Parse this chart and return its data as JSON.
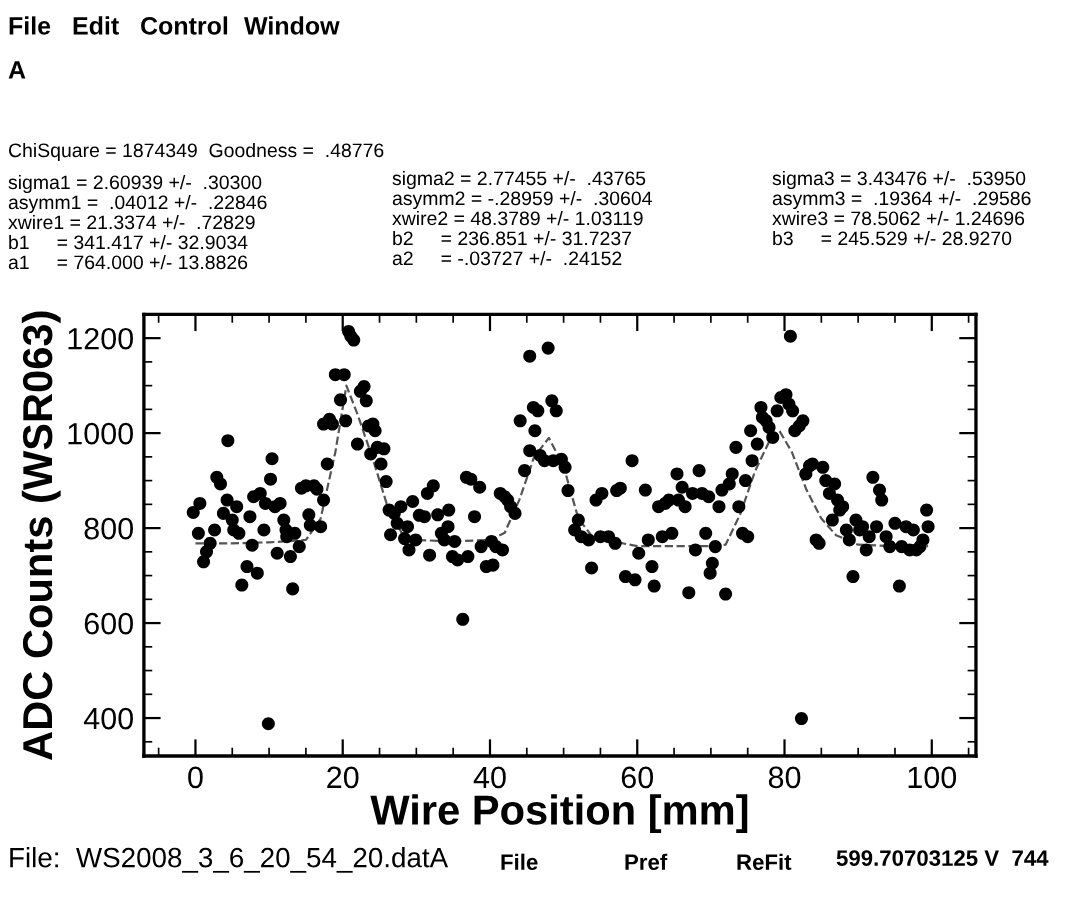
{
  "chart_data": {
    "type": "scatter",
    "xlabel": "Wire Position [mm]",
    "ylabel": "ADC Counts (WSR063)",
    "xlim": [
      -7,
      106
    ],
    "ylim": [
      320,
      1250
    ],
    "xticks": [
      0,
      20,
      40,
      60,
      80,
      100
    ],
    "yticks": [
      400,
      600,
      800,
      1000,
      1200
    ],
    "grid": false,
    "legend": false,
    "annotations": [
      "File",
      "Edit",
      "Control",
      "Window",
      "A",
      "ChiSquare = 1874349  Goodness =  .48776",
      "sigma1 = 2.60939 +/-  .30300",
      "asymm1 =  .04012 +/-  .22846",
      "xwire1 = 21.3374 +/-  .72829",
      "b1     = 341.417 +/- 32.9034",
      "a1     = 764.000 +/- 13.8826",
      "sigma2 = 2.77455 +/-  .43765",
      "asymm2 = -.28959 +/-  .30604",
      "xwire2 = 48.3789 +/- 1.03119",
      "b2     = 236.851 +/- 31.7237",
      "a2     = -.03727 +/-  .24152",
      "sigma3 = 3.43476 +/-  .53950",
      "asymm3 =  .19364 +/-  .29586",
      "xwire3 = 78.5062 +/- 1.24696",
      "b3     = 245.529 +/- 28.9270",
      "File:  WS2008_3_6_20_54_20.datA",
      "File",
      "Pref",
      "ReFit",
      "599.70703125 V  744"
    ],
    "series": [
      {
        "color": "#000000",
        "marker": "circle",
        "x": [
          -0.3,
          0.6,
          0.4,
          1.1,
          1.5,
          2.0,
          2.6,
          2.9,
          3.4,
          3.8,
          4.3,
          4.4,
          5.0,
          5.2,
          5.6,
          5.9,
          6.3,
          7.0,
          7.4,
          7.7,
          7.9,
          8.4,
          8.8,
          9.3,
          9.5,
          9.9,
          10.2,
          10.4,
          10.8,
          11.1,
          11.5,
          12.0,
          12.3,
          12.4,
          12.9,
          13.2,
          13.5,
          14.1,
          14.4,
          15.0,
          15.4,
          15.6,
          16.1,
          16.5,
          17.0,
          17.4,
          17.9,
          17.4,
          18.2,
          18.6,
          19.0,
          19.7,
          20.2,
          20.4,
          20.8,
          21.1,
          21.5,
          22.0,
          22.4,
          22.9,
          23.2,
          23.5,
          23.8,
          24.1,
          24.4,
          24.7,
          25.2,
          25.6,
          25.9,
          26.3,
          26.5,
          27.0,
          27.4,
          27.9,
          28.4,
          28.8,
          29.0,
          29.5,
          29.9,
          30.4,
          31.1,
          31.5,
          31.8,
          32.3,
          32.9,
          33.4,
          33.8,
          34.3,
          34.4,
          34.9,
          35.2,
          35.6,
          36.3,
          36.8,
          37.0,
          37.4,
          37.9,
          38.6,
          38.8,
          39.5,
          40.2,
          40.4,
          40.8,
          41.4,
          41.7,
          42.0,
          42.4,
          42.8,
          43.4,
          44.1,
          44.7,
          45.4,
          45.4,
          45.9,
          46.1,
          46.5,
          46.8,
          47.4,
          47.9,
          48.4,
          48.6,
          49.0,
          49.7,
          50.2,
          50.6,
          51.5,
          52.0,
          52.4,
          53.4,
          53.8,
          54.4,
          55.0,
          55.2,
          56.1,
          57.0,
          57.2,
          57.7,
          58.4,
          59.3,
          59.7,
          60.2,
          61.1,
          61.5,
          62.0,
          62.3,
          62.9,
          63.4,
          63.8,
          64.3,
          64.7,
          65.4,
          65.6,
          66.1,
          66.5,
          67.0,
          67.5,
          67.9,
          68.4,
          68.8,
          69.3,
          69.7,
          69.9,
          70.2,
          70.6,
          71.1,
          71.5,
          72.0,
          72.5,
          72.9,
          73.4,
          73.8,
          74.3,
          74.7,
          75.0,
          75.4,
          75.6,
          76.3,
          76.8,
          77.0,
          77.5,
          77.9,
          78.4,
          79.0,
          79.5,
          80.2,
          80.6,
          80.8,
          81.1,
          81.4,
          82.0,
          82.3,
          82.5,
          82.9,
          83.4,
          83.8,
          84.3,
          84.7,
          85.2,
          85.6,
          86.1,
          86.5,
          86.8,
          87.2,
          87.5,
          87.9,
          88.4,
          88.8,
          89.3,
          89.7,
          90.2,
          90.6,
          91.1,
          91.5,
          92.0,
          92.5,
          92.9,
          93.2,
          93.8,
          94.3,
          95.0,
          95.6,
          95.9,
          96.5,
          97.0,
          97.5,
          97.9,
          98.4,
          98.8,
          99.3,
          99.5
        ],
        "values": [
          833,
          852,
          789,
          729,
          750,
          768,
          796,
          907,
          893,
          831,
          859,
          984,
          817,
          796,
          845,
          789,
          680,
          719,
          824,
          764,
          866,
          705,
          873,
          796,
          852,
          388,
          903,
          946,
          845,
          747,
          852,
          817,
          796,
          782,
          740,
          672,
          789,
          761,
          884,
          889,
          828,
          806,
          889,
          882,
          803,
          859,
          935,
          1019,
          1029,
          1019,
          1123,
          1070,
          1123,
          1026,
          1214,
          1204,
          1196,
          977,
          1088,
          1098,
          1068,
          1015,
          956,
          1019,
          1005,
          970,
          935,
          967,
          898,
          838,
          786,
          831,
          810,
          845,
          778,
          803,
          754,
          856,
          775,
          827,
          824,
          873,
          743,
          889,
          828,
          789,
          775,
          803,
          838,
          740,
          772,
          733,
          608,
          907,
          740,
          903,
          824,
          886,
          761,
          719,
          772,
          722,
          761,
          873,
          754,
          866,
          859,
          845,
          831,
          1026,
          921,
          963,
          1162,
          1054,
          1005,
          1047,
          953,
          942,
          1179,
          1068,
          942,
          1047,
          945,
          928,
          879,
          796,
          817,
          782,
          775,
          716,
          859,
          782,
          873,
          782,
          768,
          879,
          884,
          698,
          942,
          691,
          747,
          880,
          775,
          719,
          678,
          845,
          782,
          852,
          859,
          789,
          914,
          859,
          886,
          845,
          664,
          873,
          754,
          921,
          873,
          789,
          866,
          705,
          726,
          761,
          845,
          880,
          661,
          893,
          914,
          970,
          845,
          789,
          900,
          782,
          1005,
          942,
          977,
          1054,
          1033,
          1026,
          1012,
          991,
          1047,
          1075,
          1081,
          1061,
          1204,
          1047,
          1005,
          1015,
          399,
          1026,
          914,
          931,
          935,
          775,
          768,
          928,
          900,
          873,
          817,
          893,
          859,
          838,
          845,
          796,
          775,
          698,
          817,
          796,
          803,
          754,
          782,
          907,
          803,
          880,
          859,
          782,
          761,
          810,
          678,
          761,
          803,
          754,
          796,
          754,
          761,
          775,
          838,
          803
        ]
      },
      {
        "type": "line",
        "color": "#555555",
        "line_style": "dashed",
        "marker": "none",
        "x": [
          0,
          5,
          10,
          15,
          17,
          19,
          20.5,
          22,
          24,
          26,
          28,
          30,
          35,
          40,
          42,
          44,
          46,
          48,
          50,
          52,
          54,
          60,
          65,
          70,
          72,
          74,
          76,
          78,
          79.3,
          81,
          83,
          85,
          87,
          90,
          95,
          99.5
        ],
        "values": [
          768,
          768,
          770,
          775,
          820,
          960,
          1100,
          1040,
          950,
          850,
          790,
          775,
          772,
          775,
          790,
          860,
          950,
          990,
          930,
          820,
          780,
          762,
          762,
          762,
          765,
          830,
          920,
          985,
          1005,
          960,
          880,
          820,
          785,
          765,
          762,
          762
        ]
      }
    ]
  }
}
